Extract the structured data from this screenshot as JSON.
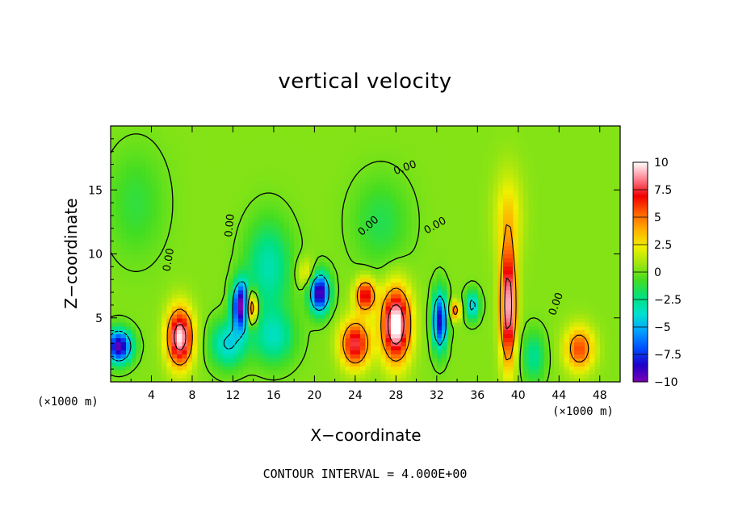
{
  "chart_data": {
    "type": "heatmap",
    "title": "vertical velocity",
    "xlabel": "X−coordinate",
    "ylabel": "Z−coordinate",
    "x_unit_label": "(×1000 m)",
    "xlim": [
      0,
      50
    ],
    "ylim": [
      0,
      20
    ],
    "x_ticks": [
      "4",
      "8",
      "12",
      "16",
      "20",
      "24",
      "28",
      "32",
      "36",
      "40",
      "44",
      "48"
    ],
    "x_tick_values": [
      4,
      8,
      12,
      16,
      20,
      24,
      28,
      32,
      36,
      40,
      44,
      48
    ],
    "y_ticks": [
      "5",
      "10",
      "15"
    ],
    "y_tick_values": [
      5,
      10,
      15
    ],
    "colorbar": {
      "ticks": [
        "10",
        "7.5",
        "5",
        "2.5",
        "0",
        "−2.5",
        "−5",
        "−7.5",
        "−10"
      ],
      "tick_values": [
        10,
        7.5,
        5,
        2.5,
        0,
        -2.5,
        -5,
        -7.5,
        -10
      ],
      "range": [
        -10,
        10
      ],
      "colors": [
        "#7a00b4",
        "#1e00c8",
        "#0050ff",
        "#00a0ff",
        "#00e0d0",
        "#00e080",
        "#44dd22",
        "#a0e610",
        "#f0f000",
        "#ffb000",
        "#ff6000",
        "#f00000",
        "#ff8090",
        "#ffffff"
      ]
    },
    "contour_labels": [
      "0.00",
      "0.00",
      "0.00",
      "0.00",
      "0.00",
      "0.00"
    ],
    "contour_interval_text": "CONTOUR INTERVAL = 4.000E+00",
    "features": [
      {
        "kind": "updraft",
        "x": 6.8,
        "z": 3.5,
        "peak": 9.5,
        "sx": 0.9,
        "sz": 1.6
      },
      {
        "kind": "updraft",
        "x": 13.8,
        "z": 5.8,
        "peak": 8.5,
        "sx": 0.4,
        "sz": 0.9
      },
      {
        "kind": "updraft",
        "x": 24.0,
        "z": 3.0,
        "peak": 7.5,
        "sx": 1.0,
        "sz": 1.3
      },
      {
        "kind": "updraft",
        "x": 25.0,
        "z": 6.8,
        "peak": 7.0,
        "sx": 0.7,
        "sz": 0.9
      },
      {
        "kind": "updraft",
        "x": 28.0,
        "z": 4.5,
        "peak": 10.5,
        "sx": 1.0,
        "sz": 2.0
      },
      {
        "kind": "updraft",
        "x": 33.8,
        "z": 5.6,
        "peak": 5.0,
        "sx": 0.4,
        "sz": 0.5
      },
      {
        "kind": "updraft",
        "x": 39.0,
        "z": 6.0,
        "peak": 9.5,
        "sx": 0.55,
        "sz": 3.2
      },
      {
        "kind": "updraft",
        "x": 46.0,
        "z": 2.6,
        "peak": 5.5,
        "sx": 1.0,
        "sz": 1.2
      },
      {
        "kind": "updraft",
        "x": 19.2,
        "z": 8.5,
        "peak": 2.5,
        "sx": 0.7,
        "sz": 0.8
      },
      {
        "kind": "updraft",
        "x": 39.0,
        "z": 13.0,
        "peak": 2.5,
        "sx": 1.0,
        "sz": 2.5
      },
      {
        "kind": "downdraft",
        "x": 0.8,
        "z": 2.8,
        "peak": -10.0,
        "sx": 0.9,
        "sz": 0.9
      },
      {
        "kind": "downdraft",
        "x": 12.8,
        "z": 6.0,
        "peak": -10.0,
        "sx": 0.6,
        "sz": 1.3
      },
      {
        "kind": "downdraft",
        "x": 20.5,
        "z": 7.0,
        "peak": -10.0,
        "sx": 0.7,
        "sz": 1.1
      },
      {
        "kind": "downdraft",
        "x": 32.3,
        "z": 4.8,
        "peak": -9.0,
        "sx": 0.5,
        "sz": 1.6
      },
      {
        "kind": "downdraft",
        "x": 35.5,
        "z": 6.0,
        "peak": -5.0,
        "sx": 0.5,
        "sz": 0.8
      },
      {
        "kind": "downdraft",
        "x": 11.5,
        "z": 3.0,
        "peak": -4.5,
        "sx": 1.2,
        "sz": 1.3
      },
      {
        "kind": "downdraft",
        "x": 16.0,
        "z": 3.5,
        "peak": -3.5,
        "sx": 1.5,
        "sz": 1.5
      },
      {
        "kind": "downdraft",
        "x": 15.5,
        "z": 9.0,
        "peak": -3.5,
        "sx": 1.6,
        "sz": 2.6
      },
      {
        "kind": "downdraft",
        "x": 2.5,
        "z": 14.0,
        "peak": -1.5,
        "sx": 2.0,
        "sz": 3.0
      },
      {
        "kind": "downdraft",
        "x": 41.5,
        "z": 2.0,
        "peak": -3.0,
        "sx": 0.8,
        "sz": 1.4
      },
      {
        "kind": "downdraft",
        "x": 26.5,
        "z": 12.5,
        "peak": -1.8,
        "sx": 2.0,
        "sz": 2.5
      }
    ]
  }
}
